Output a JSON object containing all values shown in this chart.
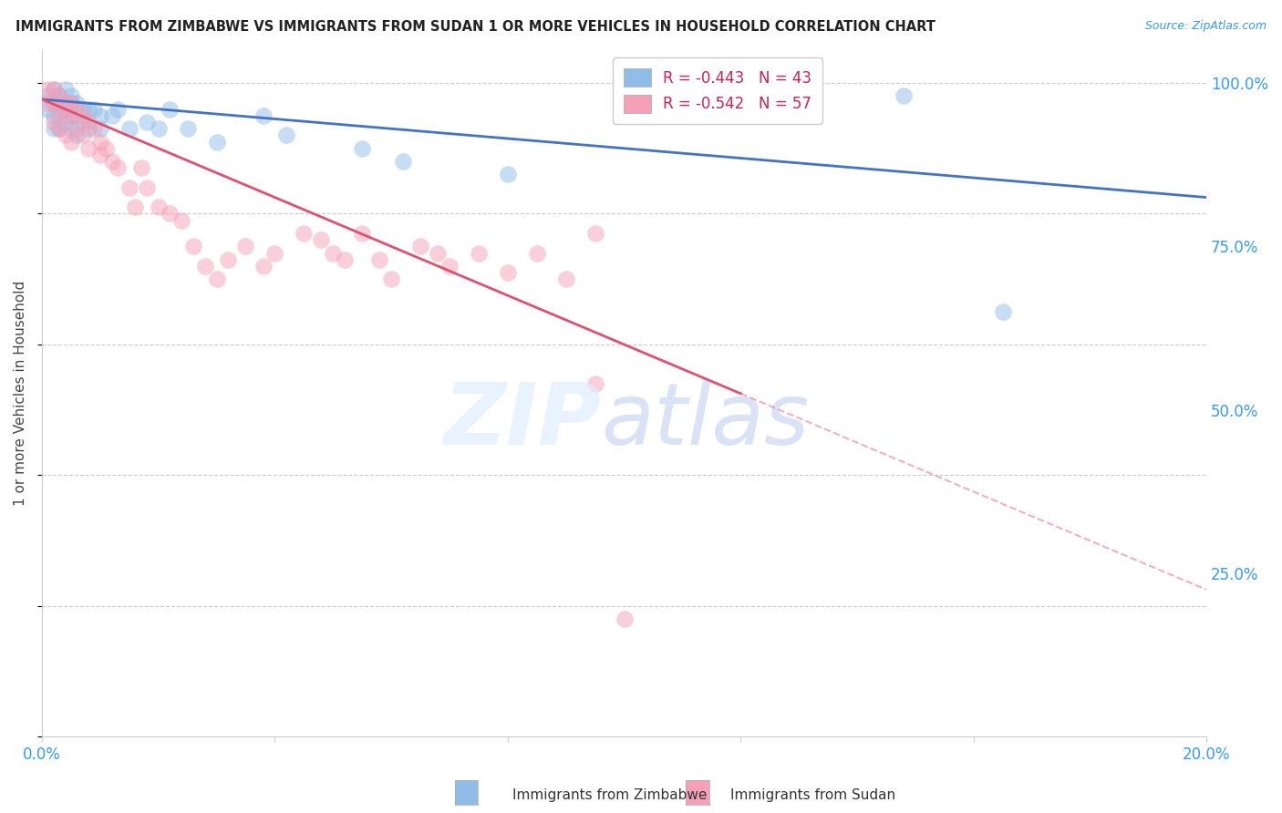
{
  "title": "IMMIGRANTS FROM ZIMBABWE VS IMMIGRANTS FROM SUDAN 1 OR MORE VEHICLES IN HOUSEHOLD CORRELATION CHART",
  "source": "Source: ZipAtlas.com",
  "ylabel": "1 or more Vehicles in Household",
  "xlim": [
    0.0,
    0.2
  ],
  "ylim": [
    0.0,
    1.05
  ],
  "grid_color": "#cccccc",
  "background_color": "#ffffff",
  "legend_R_zim": "-0.443",
  "legend_N_zim": "43",
  "legend_R_sud": "-0.542",
  "legend_N_sud": "57",
  "color_zim": "#90bce8",
  "color_sud": "#f4a0b8",
  "line_color_zim": "#4472c4",
  "line_color_sud": "#e05070",
  "zim_x": [
    0.001,
    0.001,
    0.002,
    0.002,
    0.002,
    0.002,
    0.003,
    0.003,
    0.003,
    0.003,
    0.004,
    0.004,
    0.004,
    0.004,
    0.005,
    0.005,
    0.005,
    0.005,
    0.006,
    0.006,
    0.006,
    0.007,
    0.007,
    0.008,
    0.008,
    0.009,
    0.01,
    0.01,
    0.012,
    0.013,
    0.015,
    0.018,
    0.02,
    0.022,
    0.025,
    0.03,
    0.038,
    0.042,
    0.055,
    0.062,
    0.08,
    0.148,
    0.165
  ],
  "zim_y": [
    0.98,
    0.96,
    0.99,
    0.97,
    0.95,
    0.93,
    0.98,
    0.97,
    0.95,
    0.93,
    0.99,
    0.97,
    0.96,
    0.94,
    0.98,
    0.97,
    0.95,
    0.93,
    0.97,
    0.95,
    0.92,
    0.96,
    0.94,
    0.96,
    0.93,
    0.96,
    0.95,
    0.93,
    0.95,
    0.96,
    0.93,
    0.94,
    0.93,
    0.96,
    0.93,
    0.91,
    0.95,
    0.92,
    0.9,
    0.88,
    0.86,
    0.98,
    0.65
  ],
  "sud_x": [
    0.001,
    0.001,
    0.002,
    0.002,
    0.002,
    0.003,
    0.003,
    0.003,
    0.004,
    0.004,
    0.004,
    0.005,
    0.005,
    0.005,
    0.006,
    0.006,
    0.007,
    0.007,
    0.008,
    0.008,
    0.009,
    0.01,
    0.01,
    0.011,
    0.012,
    0.013,
    0.015,
    0.016,
    0.017,
    0.018,
    0.02,
    0.022,
    0.024,
    0.026,
    0.028,
    0.03,
    0.032,
    0.035,
    0.038,
    0.04,
    0.045,
    0.048,
    0.05,
    0.052,
    0.055,
    0.058,
    0.06,
    0.065,
    0.068,
    0.07,
    0.075,
    0.08,
    0.085,
    0.09,
    0.095,
    0.095,
    0.1
  ],
  "sud_y": [
    0.99,
    0.97,
    0.99,
    0.97,
    0.94,
    0.98,
    0.96,
    0.93,
    0.97,
    0.95,
    0.92,
    0.97,
    0.95,
    0.91,
    0.96,
    0.93,
    0.95,
    0.92,
    0.94,
    0.9,
    0.93,
    0.91,
    0.89,
    0.9,
    0.88,
    0.87,
    0.84,
    0.81,
    0.87,
    0.84,
    0.81,
    0.8,
    0.79,
    0.75,
    0.72,
    0.7,
    0.73,
    0.75,
    0.72,
    0.74,
    0.77,
    0.76,
    0.74,
    0.73,
    0.77,
    0.73,
    0.7,
    0.75,
    0.74,
    0.72,
    0.74,
    0.71,
    0.74,
    0.7,
    0.54,
    0.77,
    0.18
  ],
  "sud_line_end_solid": 0.12,
  "zim_line_start": 0.0,
  "zim_line_end": 0.2
}
